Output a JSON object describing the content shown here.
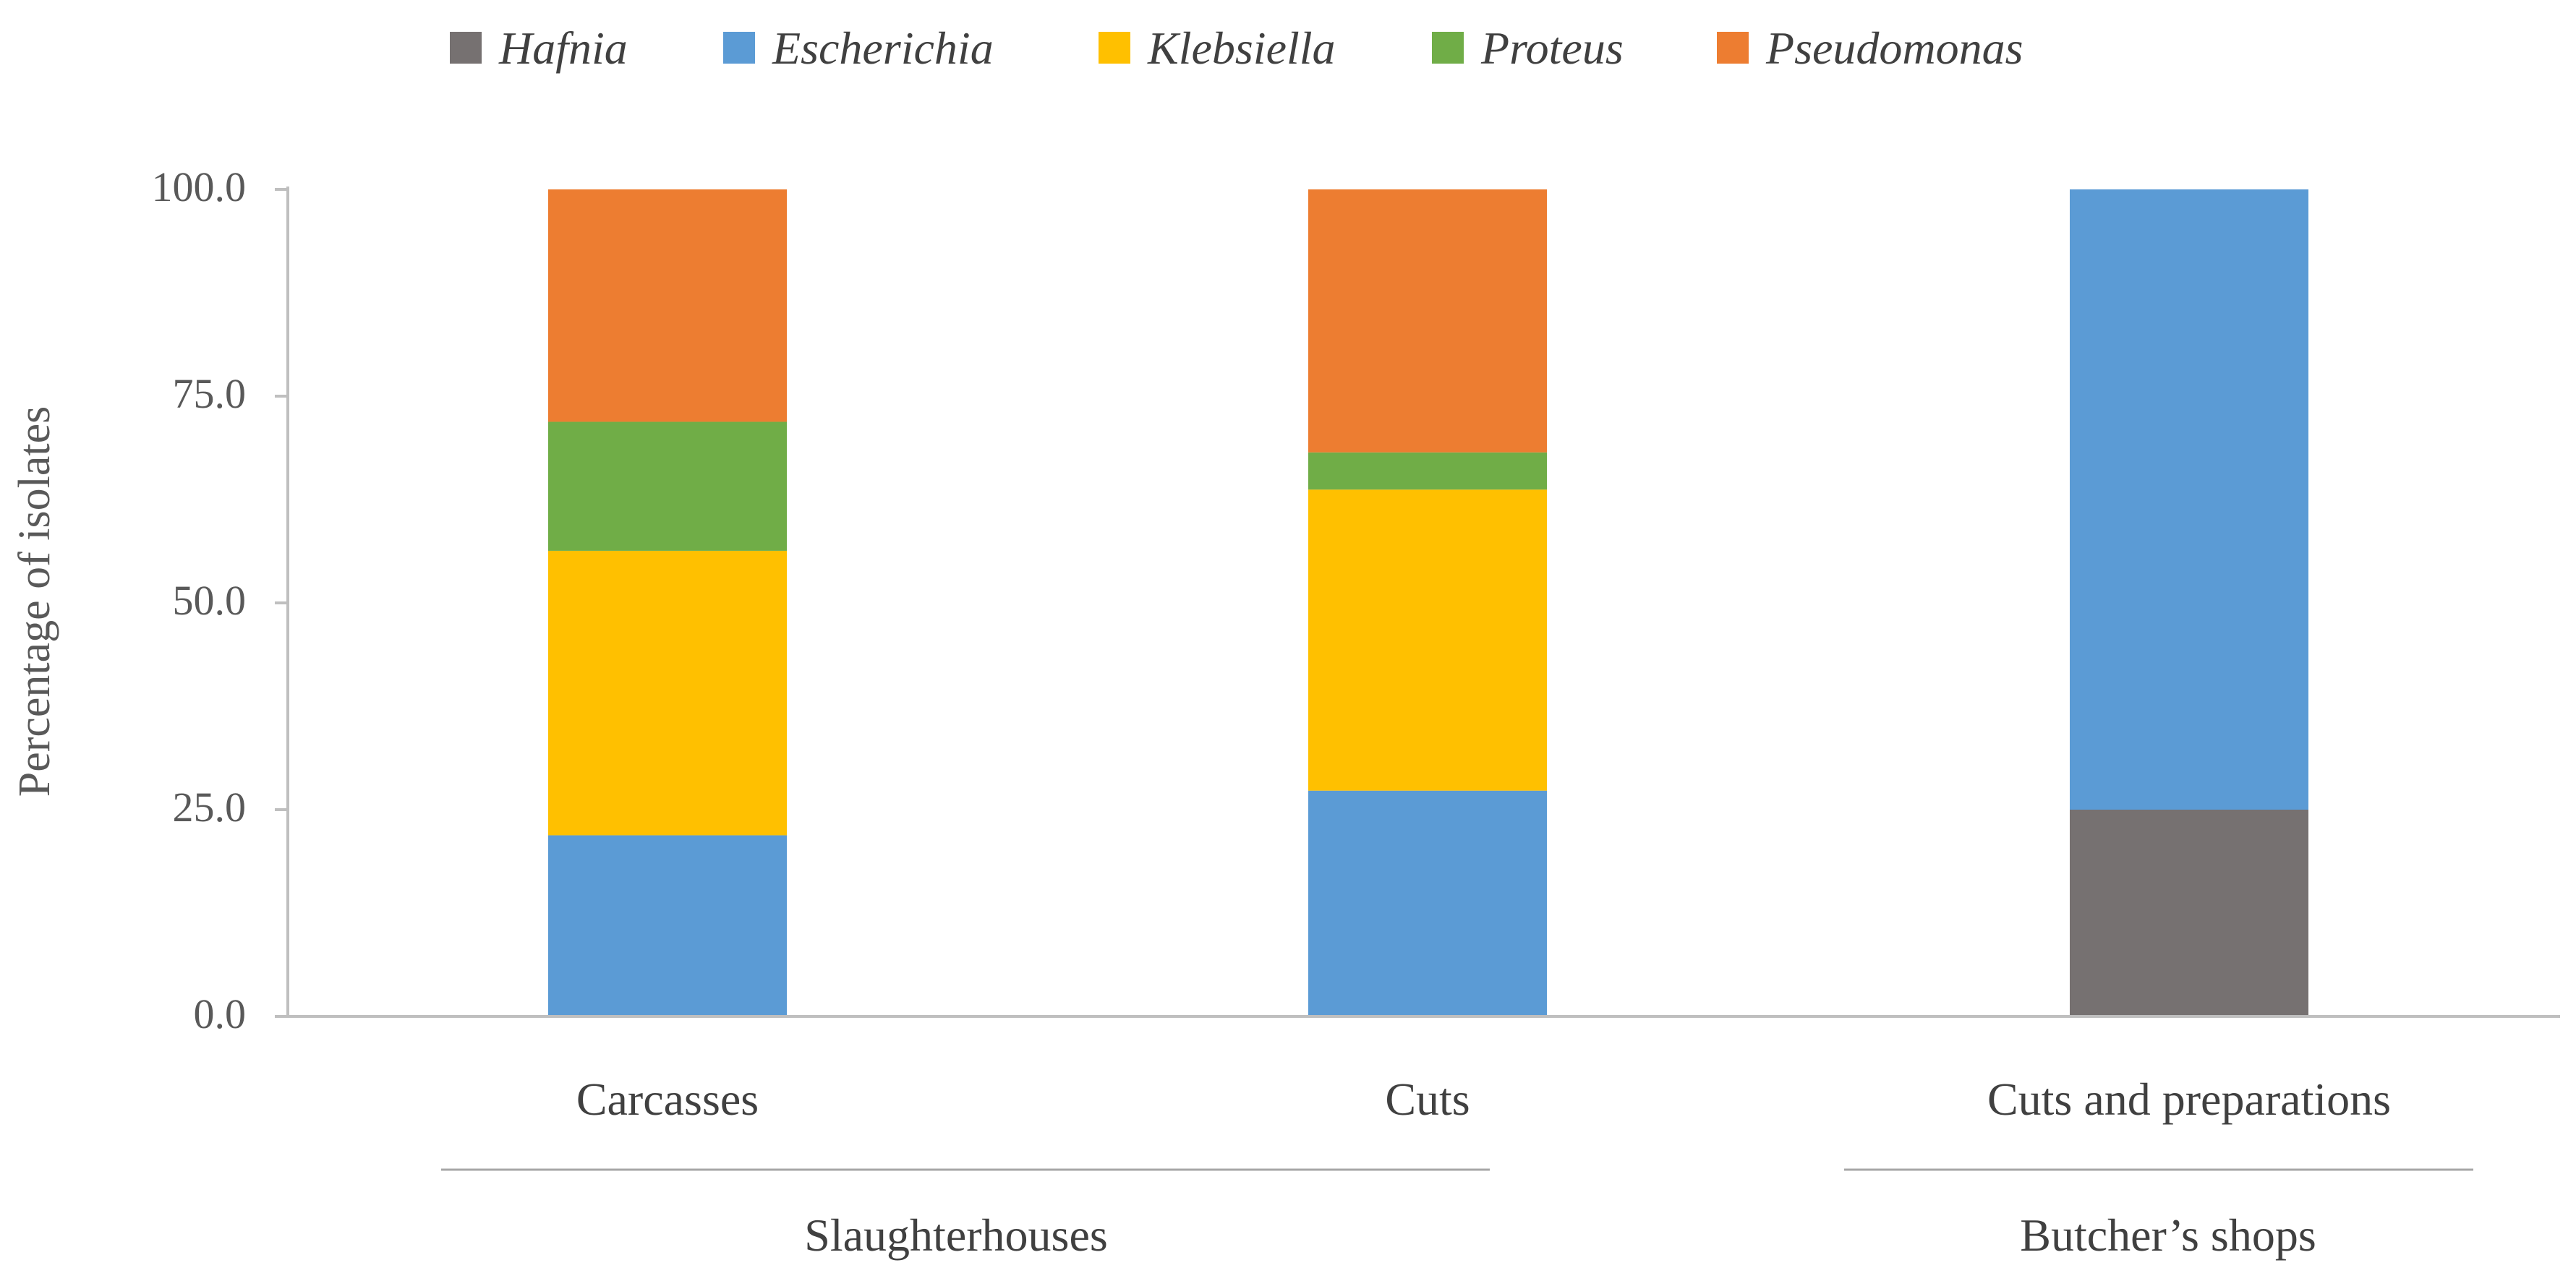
{
  "chart_data": {
    "type": "bar",
    "stacked": true,
    "title": "",
    "xlabel": "",
    "ylabel": "Percentage of isolates",
    "ylim": [
      0,
      100
    ],
    "yticks": [
      "0.0",
      "25.0",
      "50.0",
      "75.0",
      "100.0"
    ],
    "yticks_values": [
      0,
      25,
      50,
      75,
      100
    ],
    "grid": false,
    "legend_position": "top",
    "categories": [
      "Carcasses",
      "Cuts",
      "Cuts and preparations"
    ],
    "groups": [
      {
        "label": "Slaughterhouses",
        "categories": [
          "Carcasses",
          "Cuts"
        ]
      },
      {
        "label": "Butcher’s shops",
        "categories": [
          "Cuts and preparations"
        ]
      }
    ],
    "series": [
      {
        "name": "Hafnia",
        "color": "#767171",
        "values": [
          0,
          0,
          25.0
        ]
      },
      {
        "name": "Escherichia",
        "color": "#5B9BD5",
        "values": [
          21.9,
          27.3,
          75.0
        ]
      },
      {
        "name": "Klebsiella",
        "color": "#FFC000",
        "values": [
          34.4,
          36.4,
          0
        ]
      },
      {
        "name": "Proteus",
        "color": "#70AD47",
        "values": [
          15.6,
          4.5,
          0
        ]
      },
      {
        "name": "Pseudomonas",
        "color": "#ED7D31",
        "values": [
          28.1,
          31.8,
          0
        ]
      }
    ]
  }
}
